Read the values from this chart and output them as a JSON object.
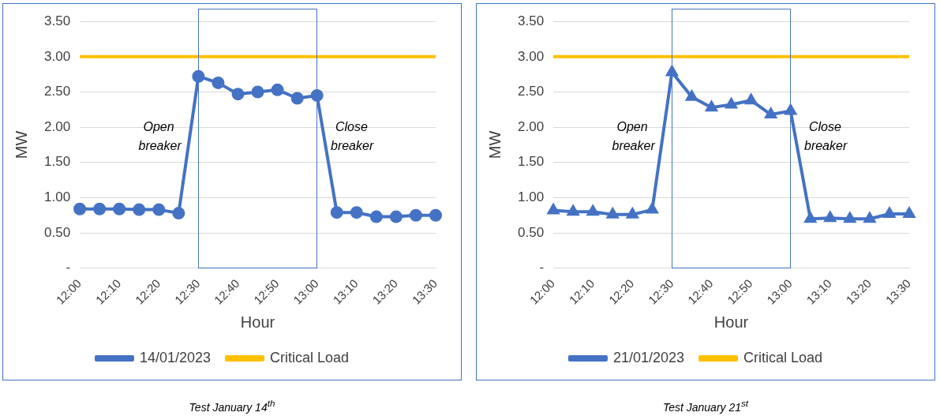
{
  "chart_data": [
    {
      "type": "line",
      "xlabel": "Hour",
      "ylabel": "MW",
      "categories": [
        "12:00",
        null,
        "12:10",
        null,
        "12:20",
        null,
        "12:30",
        null,
        "12:40",
        null,
        "12:50",
        null,
        "13:00",
        null,
        "13:10",
        null,
        "13:20",
        null,
        "13:30"
      ],
      "series": [
        {
          "name": "14/01/2023",
          "color": "#4472c4",
          "marker": "circle",
          "values": [
            0.84,
            0.84,
            0.84,
            0.83,
            0.83,
            0.78,
            2.72,
            2.63,
            2.47,
            2.5,
            2.53,
            2.41,
            2.45,
            0.79,
            0.79,
            0.73,
            0.73,
            0.75,
            0.75
          ]
        },
        {
          "name": "Critical Load",
          "color": "#ffc000",
          "marker": "none",
          "values": [
            3,
            3,
            3,
            3,
            3,
            3,
            3,
            3,
            3,
            3,
            3,
            3,
            3,
            3,
            3,
            3,
            3,
            3,
            3
          ]
        }
      ],
      "ylim": [
        0,
        3.5
      ],
      "yticks": [
        {
          "value": 0,
          "label": "-"
        },
        {
          "value": 0.5,
          "label": "0.50"
        },
        {
          "value": 1,
          "label": "1.00"
        },
        {
          "value": 1.5,
          "label": "1.50"
        },
        {
          "value": 2,
          "label": "2.00"
        },
        {
          "value": 2.5,
          "label": "2.50"
        },
        {
          "value": 3,
          "label": "3.00"
        },
        {
          "value": 3.5,
          "label": "3.50"
        }
      ],
      "grid": "y",
      "legend": "bottom",
      "annotations": [
        "Open breaker",
        "Close breaker",
        "Test January 14$^{th}$"
      ]
    },
    {
      "type": "line",
      "xlabel": "Hour",
      "ylabel": "MW",
      "categories": [
        "12:00",
        null,
        "12:10",
        null,
        "12:20",
        null,
        "12:30",
        null,
        "12:40",
        null,
        "12:50",
        null,
        "13:00",
        null,
        "13:10",
        null,
        "13:20",
        null,
        "13:30"
      ],
      "series": [
        {
          "name": "21/01/2023",
          "color": "#4472c4",
          "marker": "triangle",
          "values": [
            0.82,
            0.8,
            0.8,
            0.76,
            0.76,
            0.83,
            2.78,
            2.43,
            2.28,
            2.32,
            2.38,
            2.18,
            2.23,
            0.7,
            0.71,
            0.7,
            0.7,
            0.77,
            0.77
          ]
        },
        {
          "name": "Critical Load",
          "color": "#ffc000",
          "marker": "none",
          "values": [
            3,
            3,
            3,
            3,
            3,
            3,
            3,
            3,
            3,
            3,
            3,
            3,
            3,
            3,
            3,
            3,
            3,
            3,
            3
          ]
        }
      ],
      "ylim": [
        0,
        3.5
      ],
      "yticks": [
        {
          "value": 0,
          "label": "-"
        },
        {
          "value": 0.5,
          "label": "0.50"
        },
        {
          "value": 1,
          "label": "1.00"
        },
        {
          "value": 1.5,
          "label": "1.50"
        },
        {
          "value": 2,
          "label": "2.00"
        },
        {
          "value": 2.5,
          "label": "2.50"
        },
        {
          "value": 3,
          "label": "3.00"
        },
        {
          "value": 3.5,
          "label": "3.50"
        }
      ],
      "grid": "y",
      "legend": "bottom",
      "annotations": [
        "Open breaker",
        "Close breaker",
        "Test January 21$^{st}$"
      ]
    }
  ]
}
